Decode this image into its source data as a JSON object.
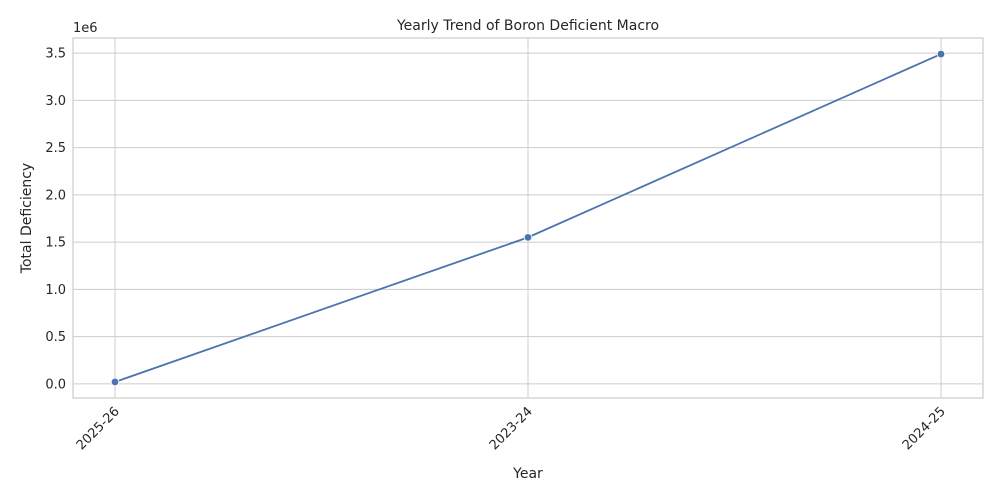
{
  "chart_data": {
    "type": "line",
    "title": "Yearly Trend of Boron Deficient Macro",
    "xlabel": "Year",
    "ylabel": "Total Deficiency",
    "y_offset_label": "1e6",
    "categories": [
      "2025-26",
      "2023-24",
      "2024-25"
    ],
    "series": [
      {
        "values": [
          20000,
          1550000,
          3490000
        ]
      }
    ],
    "ylim": [
      -150000,
      3660000
    ],
    "y_ticks": [
      0,
      500000,
      1000000,
      1500000,
      2000000,
      2500000,
      3000000,
      3500000
    ],
    "y_tick_labels": [
      "0.0",
      "0.5",
      "1.0",
      "1.5",
      "2.0",
      "2.5",
      "3.0",
      "3.5"
    ],
    "grid": true,
    "x_tick_rotation": 45,
    "line_color": "#4c72b0"
  }
}
